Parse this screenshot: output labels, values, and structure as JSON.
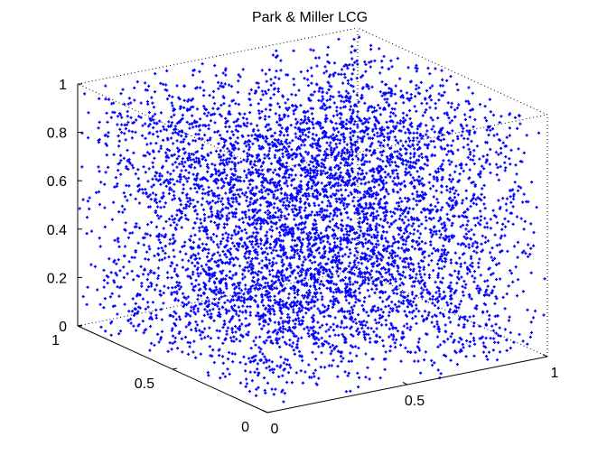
{
  "chart_data": {
    "type": "scatter",
    "title": "Park & Miller LCG",
    "dimensions": 3,
    "point_count": 6000,
    "point_distribution": "uniform random in the unit cube",
    "x_range": [
      0,
      1
    ],
    "y_range": [
      0,
      1
    ],
    "z_range": [
      0,
      1
    ],
    "x_ticks": [
      "0",
      "0.5",
      "1"
    ],
    "y_ticks": [
      "0",
      "0.5",
      "1"
    ],
    "z_ticks": [
      "0",
      "0.2",
      "0.4",
      "0.6",
      "0.8",
      "1"
    ],
    "grid": false,
    "box_edges": "dotted",
    "marker": "+",
    "color": "#0000ff",
    "legend": "none"
  }
}
